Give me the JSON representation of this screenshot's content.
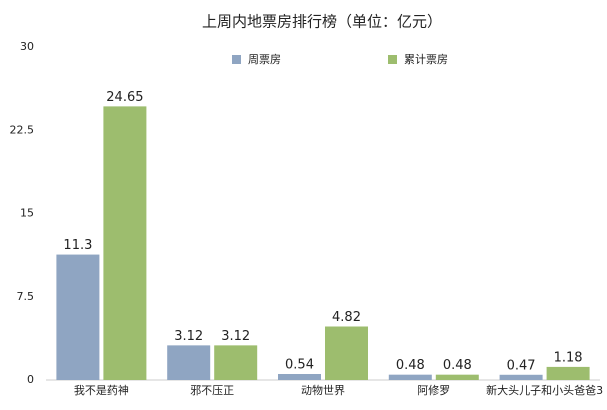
{
  "chart_data": {
    "type": "bar",
    "title": "上周内地票房排行榜（单位：亿元）",
    "categories": [
      "我不是药神",
      "邪不压正",
      "动物世界",
      "阿修罗",
      "新大头儿子和小头爸爸3"
    ],
    "series": [
      {
        "name": "周票房",
        "color": "#8fa5c2",
        "values": [
          11.3,
          3.12,
          0.54,
          0.48,
          0.47
        ]
      },
      {
        "name": "累计票房",
        "color": "#9dbd6e",
        "values": [
          24.65,
          3.12,
          4.82,
          0.48,
          1.18
        ]
      }
    ],
    "ylim": [
      0,
      30
    ],
    "yticks": [
      0,
      7.5,
      15,
      22.5,
      30
    ],
    "grid": false
  }
}
